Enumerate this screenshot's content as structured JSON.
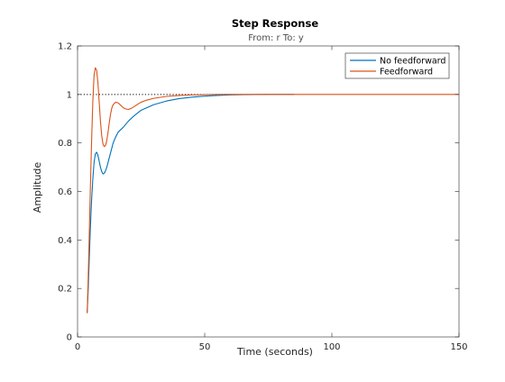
{
  "chart_data": {
    "type": "line",
    "title": "Step Response",
    "subtitle": "From: r  To: y",
    "xlabel": "Time (seconds)",
    "ylabel": "Amplitude",
    "xlim": [
      0,
      150
    ],
    "ylim": [
      0,
      1.2
    ],
    "x_ticks": [
      0,
      50,
      100,
      150
    ],
    "y_ticks": [
      0,
      0.2,
      0.4,
      0.6,
      0.8,
      1,
      1.2
    ],
    "x_tick_labels": [
      "0",
      "50",
      "100",
      "150"
    ],
    "y_tick_labels": [
      "0",
      "0.2",
      "0.4",
      "0.6",
      "0.8",
      "1",
      "1.2"
    ],
    "grid": false,
    "legend_position": "top-right",
    "reference_line": {
      "y": 1,
      "style": "dotted",
      "color": "#000000",
      "x_range": [
        0,
        75
      ]
    },
    "series": [
      {
        "name": "No feedforward",
        "color": "#0072bd",
        "x": [
          3.8,
          4.2,
          4.6,
          5.0,
          5.5,
          6.0,
          6.5,
          7.0,
          7.5,
          8.0,
          8.5,
          9.0,
          9.5,
          10.0,
          10.5,
          11.0,
          11.5,
          12.0,
          13.0,
          14.0,
          15.0,
          16.0,
          18.0,
          20.0,
          22.0,
          25.0,
          30.0,
          35.0,
          40.0,
          45.0,
          50.0,
          55.0,
          60.0,
          65.0,
          70.0,
          75.0,
          80.0,
          85.0
        ],
        "y": [
          0.1,
          0.2,
          0.32,
          0.44,
          0.56,
          0.65,
          0.72,
          0.755,
          0.762,
          0.75,
          0.725,
          0.7,
          0.682,
          0.672,
          0.675,
          0.685,
          0.7,
          0.72,
          0.76,
          0.8,
          0.825,
          0.845,
          0.865,
          0.89,
          0.91,
          0.935,
          0.958,
          0.973,
          0.983,
          0.989,
          0.993,
          0.996,
          0.998,
          0.999,
          0.9995,
          1.0,
          1.0,
          1.0
        ]
      },
      {
        "name": "Feedforward",
        "color": "#d95319",
        "x": [
          3.8,
          4.2,
          4.6,
          5.0,
          5.5,
          6.0,
          6.5,
          7.0,
          7.5,
          8.0,
          8.5,
          9.0,
          9.5,
          10.0,
          10.5,
          11.0,
          11.5,
          12.0,
          12.5,
          13.0,
          13.5,
          14.0,
          15.0,
          16.0,
          17.0,
          18.0,
          19.0,
          20.0,
          21.0,
          22.0,
          23.0,
          24.0,
          25.0,
          27.0,
          30.0,
          35.0,
          40.0,
          45.0,
          50.0,
          55.0,
          60.0,
          70.0,
          80.0,
          100.0,
          120.0,
          140.0,
          150.0
        ],
        "y": [
          0.1,
          0.25,
          0.42,
          0.6,
          0.8,
          0.97,
          1.08,
          1.11,
          1.1,
          1.05,
          0.97,
          0.89,
          0.83,
          0.795,
          0.785,
          0.79,
          0.81,
          0.845,
          0.885,
          0.92,
          0.945,
          0.958,
          0.968,
          0.965,
          0.955,
          0.945,
          0.94,
          0.938,
          0.942,
          0.948,
          0.955,
          0.962,
          0.968,
          0.976,
          0.984,
          0.992,
          0.996,
          0.998,
          0.999,
          1.0,
          1.0,
          1.0,
          1.0,
          1.0,
          1.0,
          1.0,
          1.0
        ]
      }
    ]
  }
}
